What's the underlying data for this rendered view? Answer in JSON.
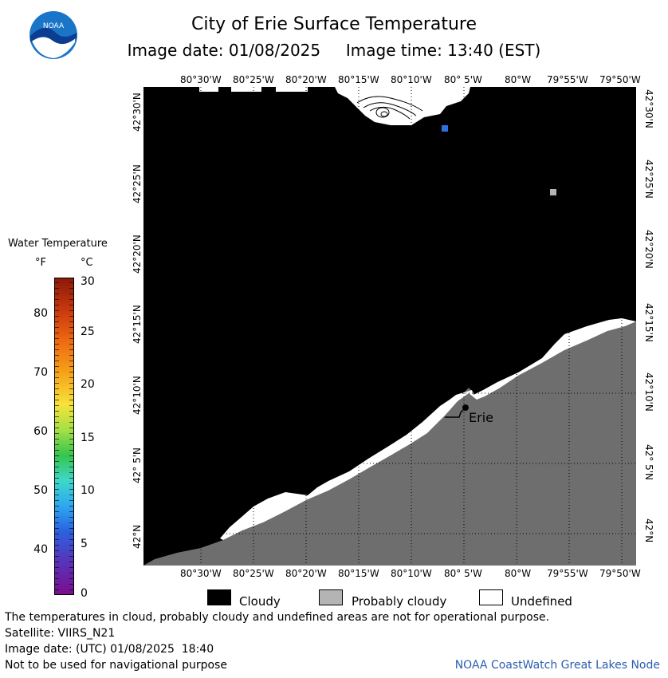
{
  "header": {
    "title": "City of Erie Surface Temperature",
    "subtitle": "Image date: 01/08/2025     Image time: 13:40 (EST)"
  },
  "logo": {
    "text": "NOAA"
  },
  "map": {
    "top_lon_labels": [
      "80°30'W",
      "80°25'W",
      "80°20'W",
      "80°15'W",
      "80°10'W",
      "80° 5'W",
      "80°W",
      "79°55'W",
      "79°50'W"
    ],
    "bottom_lon_labels": [
      "80°30'W",
      "80°25'W",
      "80°20'W",
      "80°15'W",
      "80°10'W",
      "80° 5'W",
      "80°W",
      "79°55'W",
      "79°50'W"
    ],
    "left_lat_labels": [
      "42°30'N",
      "42°25'N",
      "42°20'N",
      "42°15'N",
      "42°10'N",
      "42° 5'N",
      "42°N"
    ],
    "right_lat_labels": [
      "42°30'N",
      "42°25'N",
      "42°20'N",
      "42°15'N",
      "42°10'N",
      "42° 5'N",
      "42°N"
    ],
    "city_label": "Erie",
    "colors": {
      "cloudy": "#000000",
      "probably_cloudy": "#6e6e6e",
      "undefined": "#ffffff",
      "water_pixel": "#2f6fe0",
      "gray_pixel": "#b4b4b4"
    }
  },
  "legend": {
    "title": "Water Temperature",
    "unit_f": "°F",
    "unit_c": "°C",
    "f_labels": [
      "80",
      "70",
      "60",
      "50",
      "40"
    ],
    "c_labels": [
      "30",
      "25",
      "20",
      "15",
      "10",
      "5",
      "0"
    ]
  },
  "key": {
    "cloudy": "Cloudy",
    "probably_cloudy": "Probably cloudy",
    "undefined": "Undefined"
  },
  "footer": {
    "line1": "The temperatures in cloud, probably cloudy and undefined areas are not for operational purpose.",
    "line2": "Satellite: VIIRS_N21",
    "line3": "Image date: (UTC) 01/08/2025  18:40",
    "line4": "Not to be used for navigational purpose",
    "credit": "NOAA CoastWatch Great Lakes Node"
  }
}
